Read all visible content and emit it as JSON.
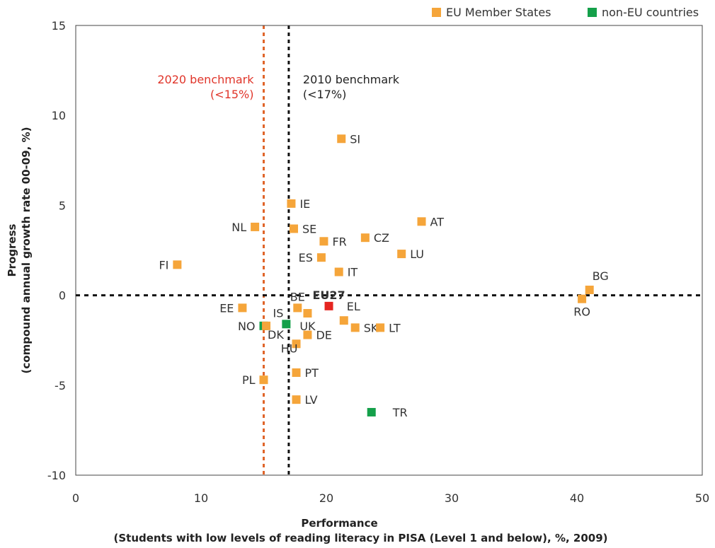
{
  "chart_data": {
    "type": "scatter",
    "xlabel": [
      "Performance",
      "(Students with low levels of reading literacy in PISA (Level 1 and below), %, 2009)"
    ],
    "ylabel": [
      "Progress",
      "(compound annual growth rate 00-09, %)"
    ],
    "xlim": [
      0,
      50
    ],
    "ylim": [
      -10,
      15
    ],
    "x_ticks": [
      "0",
      "10",
      "20",
      "30",
      "40",
      "50"
    ],
    "y_ticks": [
      "15",
      "10",
      "5",
      "0",
      "-5",
      "-10"
    ],
    "grid": false,
    "legend_position": "top-right",
    "colors": {
      "eu": "#f5a53a",
      "non_eu": "#14a04a",
      "eu27": "#e52520",
      "bench2020": "#e0652a",
      "bench2010": "#111111"
    },
    "legend": [
      {
        "key": "eu",
        "label": "EU Member States"
      },
      {
        "key": "non_eu",
        "label": "non-EU countries"
      }
    ],
    "benchmarks": [
      {
        "x": 15,
        "label_line1": "2020 benchmark",
        "label_line2": "(<15%)",
        "key": "bench2020"
      },
      {
        "x": 17,
        "label_line1": "2010 benchmark",
        "label_line2": "(<17%)",
        "key": "bench2010"
      }
    ],
    "reference_line_y": 0,
    "points": [
      {
        "label": "SI",
        "x": 21.2,
        "y": 8.7,
        "group": "eu",
        "pos": "right"
      },
      {
        "label": "IE",
        "x": 17.2,
        "y": 5.1,
        "group": "eu",
        "pos": "right"
      },
      {
        "label": "NL",
        "x": 14.3,
        "y": 3.8,
        "group": "eu",
        "pos": "left"
      },
      {
        "label": "SE",
        "x": 17.4,
        "y": 3.7,
        "group": "eu",
        "pos": "right"
      },
      {
        "label": "AT",
        "x": 27.6,
        "y": 4.1,
        "group": "eu",
        "pos": "right"
      },
      {
        "label": "CZ",
        "x": 23.1,
        "y": 3.2,
        "group": "eu",
        "pos": "right"
      },
      {
        "label": "FR",
        "x": 19.8,
        "y": 3.0,
        "group": "eu",
        "pos": "right"
      },
      {
        "label": "LU",
        "x": 26.0,
        "y": 2.3,
        "group": "eu",
        "pos": "right"
      },
      {
        "label": "ES",
        "x": 19.6,
        "y": 2.1,
        "group": "eu",
        "pos": "left"
      },
      {
        "label": "FI",
        "x": 8.1,
        "y": 1.7,
        "group": "eu",
        "pos": "left"
      },
      {
        "label": "IT",
        "x": 21.0,
        "y": 1.3,
        "group": "eu",
        "pos": "right"
      },
      {
        "label": "BG",
        "x": 41.0,
        "y": 0.3,
        "group": "eu",
        "pos": "above-right"
      },
      {
        "label": "RO",
        "x": 40.4,
        "y": -0.2,
        "group": "eu",
        "pos": "below"
      },
      {
        "label": "EU27",
        "x": 20.2,
        "y": -0.6,
        "group": "eu27",
        "pos": "above"
      },
      {
        "label": "EE",
        "x": 13.3,
        "y": -0.7,
        "group": "eu",
        "pos": "left"
      },
      {
        "label": "BE",
        "x": 17.7,
        "y": -0.7,
        "group": "eu",
        "pos": "above"
      },
      {
        "label": "IS",
        "x": 16.8,
        "y": -1.6,
        "group": "non_eu",
        "pos": "above-left"
      },
      {
        "label": "UK",
        "x": 18.5,
        "y": -1.0,
        "group": "eu",
        "pos": "below"
      },
      {
        "label": "EL",
        "x": 21.4,
        "y": -1.4,
        "group": "eu",
        "pos": "above-right"
      },
      {
        "label": "NO",
        "x": 15.0,
        "y": -1.7,
        "group": "non_eu",
        "pos": "left"
      },
      {
        "label": "DK",
        "x": 15.2,
        "y": -1.7,
        "group": "eu",
        "pos": "below-right"
      },
      {
        "label": "SK",
        "x": 22.3,
        "y": -1.8,
        "group": "eu",
        "pos": "right"
      },
      {
        "label": "LT",
        "x": 24.3,
        "y": -1.8,
        "group": "eu",
        "pos": "right"
      },
      {
        "label": "DE",
        "x": 18.5,
        "y": -2.2,
        "group": "eu",
        "pos": "right"
      },
      {
        "label": "HU",
        "x": 17.6,
        "y": -2.7,
        "group": "eu",
        "pos": "below-left"
      },
      {
        "label": "PT",
        "x": 17.6,
        "y": -4.3,
        "group": "eu",
        "pos": "right"
      },
      {
        "label": "PL",
        "x": 15.0,
        "y": -4.7,
        "group": "eu",
        "pos": "left"
      },
      {
        "label": "LV",
        "x": 17.6,
        "y": -5.8,
        "group": "eu",
        "pos": "right"
      },
      {
        "label": "TR",
        "x": 23.6,
        "y": -6.5,
        "group": "non_eu",
        "pos": "right-far"
      }
    ]
  }
}
